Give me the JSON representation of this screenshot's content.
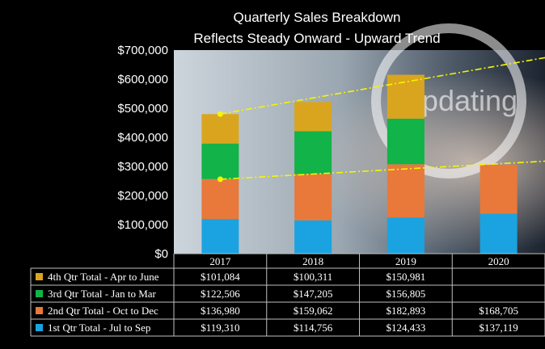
{
  "chart_data": {
    "type": "bar",
    "stacked": true,
    "title": "Quarterly Sales Breakdown",
    "subtitle": "Reflects Steady Onward - Upward Trend",
    "categories": [
      "2017",
      "2018",
      "2019",
      "2020"
    ],
    "ylim": [
      0,
      700000
    ],
    "yticks": [
      0,
      100000,
      200000,
      300000,
      400000,
      500000,
      600000,
      700000
    ],
    "ytick_labels": [
      "$0",
      "$100,000",
      "$200,000",
      "$300,000",
      "$400,000",
      "$500,000",
      "$600,000",
      "$700,000"
    ],
    "grid": false,
    "legend": "data-table-below",
    "background_text": "Updating",
    "series": [
      {
        "name": "1st Qtr Total - Jul to Sep",
        "color": "#1aa3e0",
        "values": [
          119310,
          114756,
          124433,
          137119
        ],
        "labels": [
          "$119,310",
          "$114,756",
          "$124,433",
          "$137,119"
        ]
      },
      {
        "name": "2nd Qtr Total - Oct to Dec",
        "color": "#e8793a",
        "values": [
          136980,
          159062,
          182893,
          168705
        ],
        "labels": [
          "$136,980",
          "$159,062",
          "$182,893",
          "$168,705"
        ]
      },
      {
        "name": "3rd Qtr Total - Jan to Mar",
        "color": "#12b348",
        "values": [
          122506,
          147205,
          156805,
          null
        ],
        "labels": [
          "$122,506",
          "$147,205",
          "$156,805",
          ""
        ]
      },
      {
        "name": "4th Qtr Total - Apr to June",
        "color": "#d9a51e",
        "values": [
          101084,
          100311,
          150981,
          null
        ],
        "labels": [
          "$101,084",
          "$100,311",
          "$150,981",
          ""
        ]
      }
    ],
    "trendlines": [
      {
        "color": "#f5f500",
        "from": [
          "2017",
          480000
        ],
        "to": [
          "2020",
          680000
        ]
      },
      {
        "color": "#f5f500",
        "from": [
          "2017",
          256000
        ],
        "to": [
          "2020",
          320000
        ]
      }
    ]
  }
}
